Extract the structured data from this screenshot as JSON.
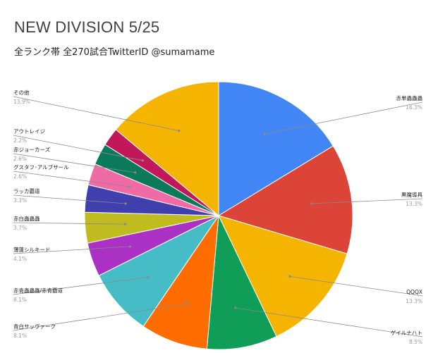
{
  "chart_data": {
    "type": "pie",
    "title": "NEW DIVISION 5/25",
    "subtitle": "全ランク帯 全270試合TwitterID @sumamame",
    "slices": [
      {
        "label": "赤単蟲蟲蟲",
        "pct_label": "16.3%",
        "value": 16.3,
        "color": "#4285f4",
        "side": "right"
      },
      {
        "label": "黒魔導具",
        "pct_label": "13.3%",
        "value": 13.3,
        "color": "#db4437",
        "side": "right"
      },
      {
        "label": "QQQX",
        "pct_label": "13.3%",
        "value": 13.3,
        "color": "#f4b400",
        "side": "right"
      },
      {
        "label": "ゲイルナハト",
        "pct_label": "8.5%",
        "value": 8.5,
        "color": "#0f9d58",
        "side": "right"
      },
      {
        "label": "青白サッヴァーク",
        "pct_label": "8.1%",
        "value": 8.1,
        "color": "#ff6d00",
        "side": "left"
      },
      {
        "label": "赤青蟲蟲蟲/赤青覇道",
        "pct_label": "8.1%",
        "value": 8.1,
        "color": "#46bdc6",
        "side": "left"
      },
      {
        "label": "薄蓮シルキード",
        "pct_label": "4.1%",
        "value": 4.1,
        "color": "#ab30c4",
        "side": "left"
      },
      {
        "label": "赤白蟲蟲蟲",
        "pct_label": "3.7%",
        "value": 3.7,
        "color": "#c0bb1f",
        "side": "left"
      },
      {
        "label": "ラッカ覇道",
        "pct_label": "3.3%",
        "value": 3.3,
        "color": "#3f3fad",
        "side": "left"
      },
      {
        "label": "グスタフ･アルブサール",
        "pct_label": "2.6%",
        "value": 2.6,
        "color": "#f06aa5",
        "side": "left"
      },
      {
        "label": "赤ジョーカーズ",
        "pct_label": "2.6%",
        "value": 2.6,
        "color": "#0b7a5a",
        "side": "left"
      },
      {
        "label": "アウトレイジ",
        "pct_label": "2.2%",
        "value": 2.2,
        "color": "#c2185b",
        "side": "left"
      },
      {
        "label": "その他",
        "pct_label": "13.9%",
        "value": 13.9,
        "color": "#f4b400",
        "side": "left"
      }
    ]
  }
}
